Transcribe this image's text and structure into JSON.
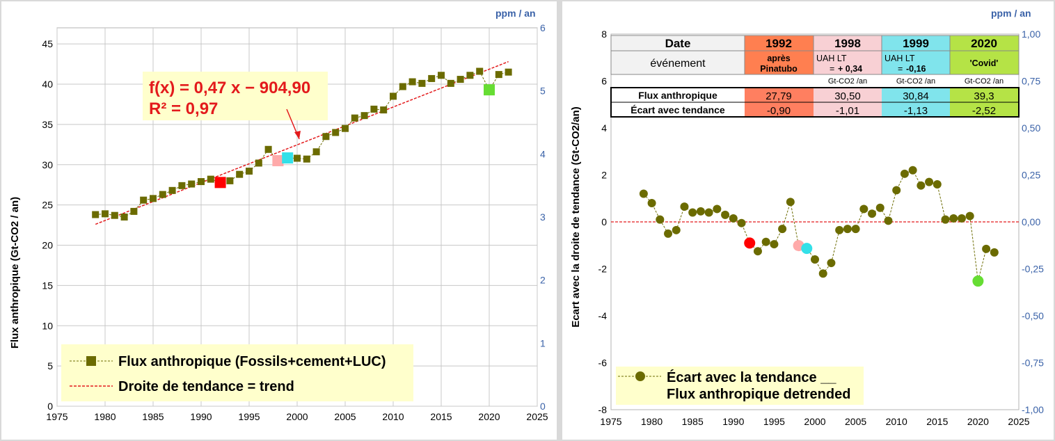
{
  "chart_data": [
    {
      "type": "line",
      "xlim": [
        1975,
        2025
      ],
      "x_ticks": [
        1975,
        1980,
        1985,
        1990,
        1995,
        2000,
        2005,
        2010,
        2015,
        2020,
        2025
      ],
      "ylim": [
        0,
        47
      ],
      "y_ticks": [
        0,
        5,
        10,
        15,
        20,
        25,
        30,
        35,
        40,
        45
      ],
      "ylabel": "Flux anthropique   (Gt-CO2 / an)",
      "y2_unit": "ppm / an",
      "y2_ticks": [
        0,
        1,
        2,
        3,
        4,
        5,
        6
      ],
      "grid": true,
      "legend_position": "bottom-left",
      "equation": "f(x) = 0,47 x − 904,90",
      "r2": "R² = 0,97",
      "series": [
        {
          "name": "Flux anthropique (Fossils+cement+LUC)",
          "x": [
            1979,
            1980,
            1981,
            1982,
            1983,
            1984,
            1985,
            1986,
            1987,
            1988,
            1989,
            1990,
            1991,
            1992,
            1993,
            1994,
            1995,
            1996,
            1997,
            1998,
            1999,
            2000,
            2001,
            2002,
            2003,
            2004,
            2005,
            2006,
            2007,
            2008,
            2009,
            2010,
            2011,
            2012,
            2013,
            2014,
            2015,
            2016,
            2017,
            2018,
            2019,
            2020,
            2021,
            2022
          ],
          "values": [
            23.8,
            23.9,
            23.7,
            23.5,
            24.2,
            25.6,
            25.8,
            26.3,
            26.8,
            27.4,
            27.6,
            27.9,
            28.2,
            27.79,
            28.0,
            28.8,
            29.2,
            30.2,
            31.9,
            30.5,
            30.84,
            30.8,
            30.7,
            31.6,
            33.5,
            34.0,
            34.5,
            35.8,
            36.1,
            36.9,
            36.8,
            38.5,
            39.7,
            40.3,
            40.1,
            40.7,
            41.1,
            40.1,
            40.6,
            41.1,
            41.6,
            39.3,
            41.2,
            41.5
          ],
          "color": "#6b6b00"
        },
        {
          "name": "Droite de tendance = trend",
          "x": [
            1979,
            2022
          ],
          "values": [
            22.6,
            42.8
          ],
          "color": "#e31a1c"
        }
      ],
      "highlights": [
        {
          "x": 1992,
          "value": 27.79,
          "color": "#ff0000"
        },
        {
          "x": 1998,
          "value": 30.5,
          "color": "#ffaaaa"
        },
        {
          "x": 1999,
          "value": 30.84,
          "color": "#33e0e8"
        },
        {
          "x": 2020,
          "value": 39.3,
          "color": "#66dd33"
        }
      ]
    },
    {
      "type": "line",
      "xlim": [
        1975,
        2025
      ],
      "x_ticks": [
        1975,
        1980,
        1985,
        1990,
        1995,
        2000,
        2005,
        2010,
        2015,
        2020,
        2025
      ],
      "ylim": [
        -8,
        8
      ],
      "y_ticks": [
        -8,
        -6,
        -4,
        -2,
        0,
        2,
        4,
        6,
        8
      ],
      "ylabel": "Ecart avec la droite de tendance   (Gt-CO2/an)",
      "y2_ticks": [
        "-1,00",
        "-0,75",
        "-0,50",
        "-0,25",
        "0,00",
        "0,25",
        "0,50",
        "0,75",
        "1,00"
      ],
      "legend_position": "bottom-left",
      "series": [
        {
          "name": "Écart avec la tendance __ Flux anthropique detrended",
          "legend_lines": [
            "Écart avec la tendance __",
            "Flux anthropique detrended"
          ],
          "x": [
            1979,
            1980,
            1981,
            1982,
            1983,
            1984,
            1985,
            1986,
            1987,
            1988,
            1989,
            1990,
            1991,
            1992,
            1993,
            1994,
            1995,
            1996,
            1997,
            1998,
            1999,
            2000,
            2001,
            2002,
            2003,
            2004,
            2005,
            2006,
            2007,
            2008,
            2009,
            2010,
            2011,
            2012,
            2013,
            2014,
            2015,
            2016,
            2017,
            2018,
            2019,
            2020,
            2021,
            2022
          ],
          "values": [
            1.2,
            0.8,
            0.1,
            -0.5,
            -0.35,
            0.65,
            0.4,
            0.45,
            0.4,
            0.55,
            0.3,
            0.15,
            -0.05,
            -0.9,
            -1.25,
            -0.85,
            -0.95,
            -0.3,
            0.85,
            -1.01,
            -1.13,
            -1.6,
            -2.2,
            -1.75,
            -0.35,
            -0.3,
            -0.3,
            0.55,
            0.35,
            0.6,
            0.05,
            1.35,
            2.05,
            2.2,
            1.55,
            1.7,
            1.6,
            0.1,
            0.15,
            0.15,
            0.25,
            -2.52,
            -1.15,
            -1.3
          ],
          "color": "#6b6b00"
        },
        {
          "name": "zero",
          "x": [
            1975,
            2025
          ],
          "values": [
            0,
            0
          ],
          "color": "#e31a1c"
        }
      ],
      "highlights": [
        {
          "x": 1992,
          "value": -0.9,
          "color": "#ff0000"
        },
        {
          "x": 1998,
          "value": -1.01,
          "color": "#ffaaaa"
        },
        {
          "x": 1999,
          "value": -1.13,
          "color": "#33e0e8"
        },
        {
          "x": 2020,
          "value": -2.52,
          "color": "#66dd33"
        }
      ],
      "table": {
        "header_label": "Date",
        "event_label": "événement",
        "row1_label": "Flux anthropique",
        "row2_label": "Écart avec tendance",
        "columns": [
          {
            "date": "1992",
            "event_line1": "après",
            "event_line2": "Pinatubo",
            "event_bold": true,
            "unit": "",
            "flux": "27,79",
            "ecart": "-0,90",
            "head_color": "#ff7f50",
            "body_color": "#ff7f60"
          },
          {
            "date": "1998",
            "event_line1": "UAH LT",
            "event_line2_prefix": "= ",
            "event_line2": "+ 0,34",
            "event_bold": false,
            "unit": "Gt-CO2 /an",
            "flux": "30,50",
            "ecart": "-1,01",
            "head_color": "#f8d0d4",
            "body_color": "#f8d0d4"
          },
          {
            "date": "1999",
            "event_line1": "UAH LT",
            "event_line2_prefix": "= ",
            "event_line2": "-0,16",
            "event_bold": false,
            "unit": "Gt-CO2 /an",
            "flux": "30,84",
            "ecart": "-1,13",
            "head_color": "#80e4ec",
            "body_color": "#80e4ec"
          },
          {
            "date": "2020",
            "event_line1": "'Covid'",
            "event_line2": "",
            "event_bold": true,
            "unit": "Gt-CO2 /an",
            "flux": "39,3",
            "ecart": "-2,52",
            "head_color": "#b5e346",
            "body_color": "#b5e346"
          }
        ]
      }
    }
  ],
  "colors": {
    "series": "#6b6b00",
    "trend": "#e31a1c",
    "right_axis": "#3a62a8",
    "legend_bg": "#ffffcc"
  }
}
